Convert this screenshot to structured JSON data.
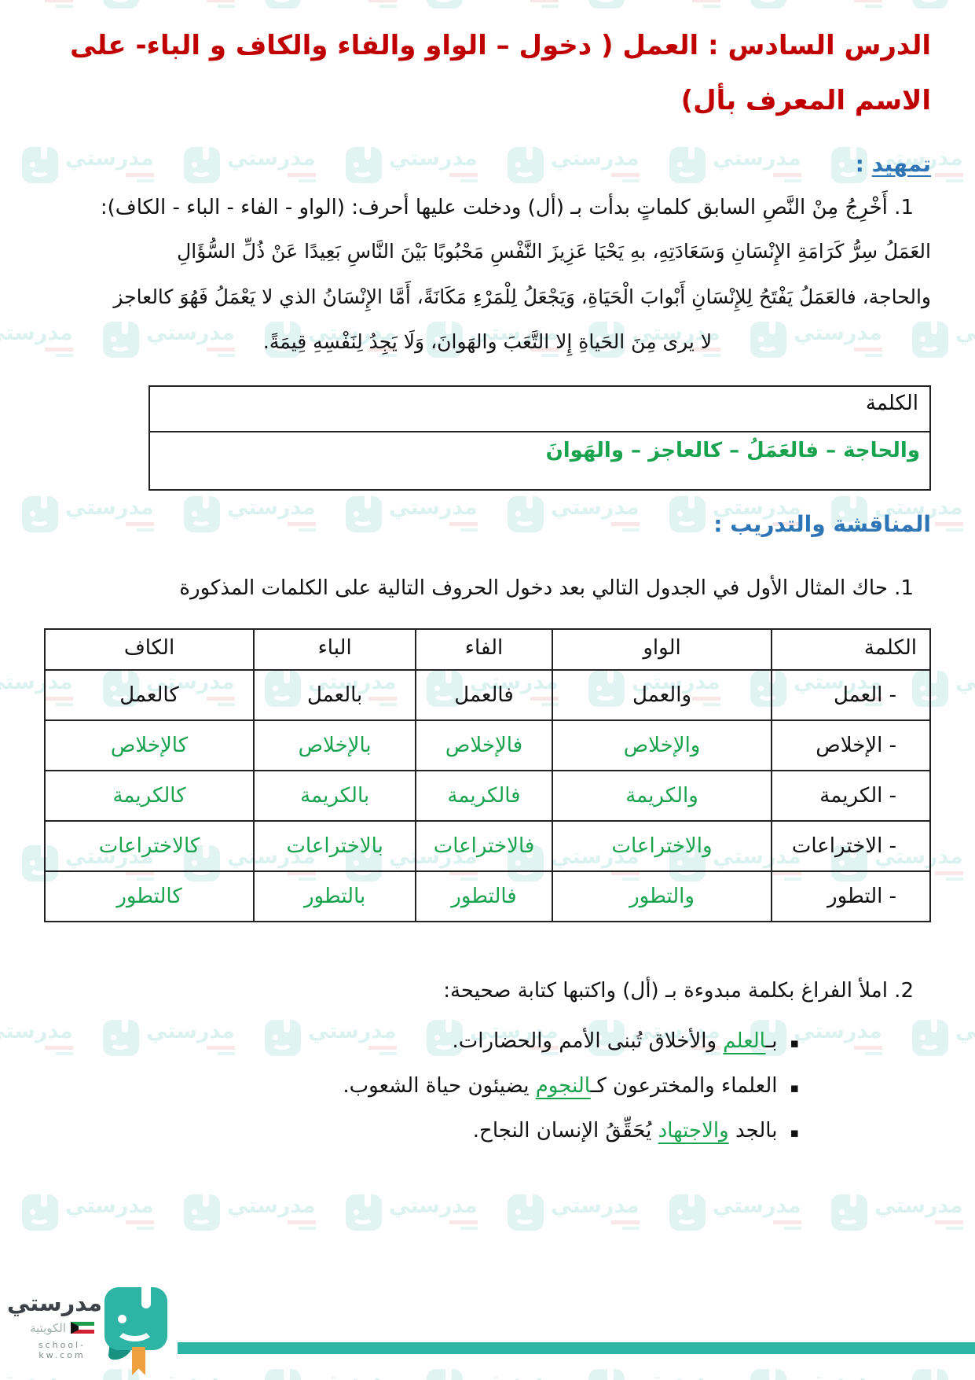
{
  "title": {
    "line1": "الدرس السادس : العمل ( دخول – الواو والفاء والكاف و الباء- على",
    "line2": "الاسم المعرف بأل)"
  },
  "sections": {
    "tamheed": "تمهيد",
    "tamheed_colon": " :",
    "discussion": "المناقشة والتدريب :"
  },
  "tamheed": {
    "q1": "1. أَخْرِجُ مِنْ النَّصِ السابق كلماتٍ بدأت بـ (أل) ودخلت عليها أحرف: (الواو - الفاء - الباء - الكاف):",
    "passage": [
      "العَمَلُ سِرُّ كَرَامَةِ الإِنْسَانِ وَسَعَادَتِهِ، بهِ يَحْيَا عَزِيزَ النَّفْسِ مَحْبُوبًا بَيْنَ النَّاسِ بَعِيدًا عَنْ ذُلِّ السُّؤَالِ",
      "والحاجة، فالعَمَلُ يَفْتَحُ لِلإِنْسَانِ أَبْوابَ الْحَيَاةِ، وَيَجْعَلُ لِلْمَرْءِ مَكَانَةً، أَمَّا الإِنْسَانُ الذي لا يَعْمَلُ فَهُوَ كالعاجز",
      "لا يرى مِنَ الحَياةِ إِلا التَّعَبَ والهَوانَ، وَلَا يَجِدُ لِنَفْسِهِ قِيمَةً."
    ]
  },
  "answer_box": {
    "header": "الكلمة",
    "answer": "والحاجة – فالعَمَلُ – كالعاجز – والهَوانَ"
  },
  "discussion": {
    "q1": "1. حاك المثال الأول في الجدول التالي بعد دخول الحروف التالية على الكلمات المذكورة"
  },
  "table": {
    "headers": [
      "الكلمة",
      "الواو",
      "الفاء",
      "الباء",
      "الكاف"
    ],
    "rows": [
      {
        "word": "- العمل",
        "waw": "والعمل",
        "fa": "فالعمل",
        "ba": "بالعمل",
        "kaf": "كالعمل"
      },
      {
        "word": "- الإخلاص",
        "waw": "والإخلاص",
        "fa": "فالإخلاص",
        "ba": "بالإخلاص",
        "kaf": "كالإخلاص"
      },
      {
        "word": "- الكريمة",
        "waw": "والكريمة",
        "fa": "فالكريمة",
        "ba": "بالكريمة",
        "kaf": "كالكريمة"
      },
      {
        "word": "- الاختراعات",
        "waw": "والاختراعات",
        "fa": "فالاختراعات",
        "ba": "بالاختراعات",
        "kaf": "كالاختراعات"
      },
      {
        "word": "- التطور",
        "waw": "والتطور",
        "fa": "فالتطور",
        "ba": "بالتطور",
        "kaf": "كالتطور"
      }
    ]
  },
  "exercise2": {
    "title": "2. املأ الفراغ بكلمة مبدوءة بـ (أل) واكتبها كتابة صحيحة:",
    "bullet": "▪",
    "items": [
      {
        "pre": "بـ",
        "answer": "العلم",
        "post": " والأخلاق تُبنى الأمم والحضارات."
      },
      {
        "pre": "العلماء والمخترعون كـ",
        "answer": "النجوم",
        "post": " يضيئون حياة الشعوب."
      },
      {
        "pre": "بالجد ",
        "answer": "والاجتهاد",
        "post": " يُحَقِّقُ الإنسان النجاح."
      }
    ]
  },
  "footer": {
    "brand": "مدرستي",
    "country": "الكويتية",
    "website": "school-kw.com"
  },
  "colors": {
    "title_red": "#c00000",
    "heading_blue": "#2e75b6",
    "answer_green": "#1aa34f",
    "brand_teal": "#2db4a5",
    "bookmark_orange": "#f0a13f"
  }
}
